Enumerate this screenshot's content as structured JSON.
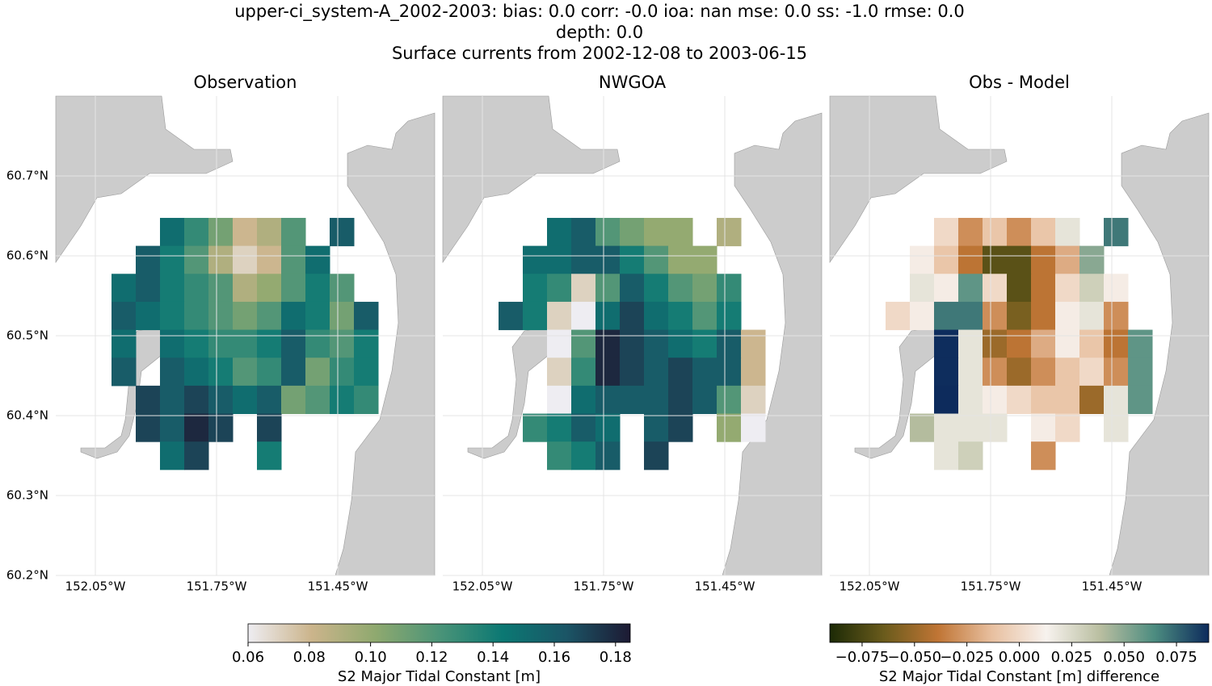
{
  "chart_data": {
    "type": "map",
    "title": [
      "upper-ci_system-A_2002-2003: bias: 0.0  corr: -0.0  ioa: nan  mse: 0.0  ss: -1.0  rmse: 0.0",
      "depth: 0.0",
      "Surface currents from 2002-12-08 to 2003-06-15"
    ],
    "land_color": "#cccccc",
    "xlim": [
      -152.148,
      -151.21
    ],
    "ylim": [
      60.2,
      60.8
    ],
    "xticks": [
      {
        "value": -152.05,
        "label": "152.05°W"
      },
      {
        "value": -151.75,
        "label": "151.75°W"
      },
      {
        "value": -151.45,
        "label": "151.45°W"
      }
    ],
    "yticks": [
      {
        "value": 60.7,
        "label": "60.7°N"
      },
      {
        "value": 60.6,
        "label": "60.6°N"
      },
      {
        "value": 60.5,
        "label": "60.5°N"
      },
      {
        "value": 60.4,
        "label": "60.4°N"
      },
      {
        "value": 60.3,
        "label": "60.3°N"
      },
      {
        "value": 60.2,
        "label": "60.2°N"
      }
    ],
    "lons": [
      -151.98,
      -151.92,
      -151.86,
      -151.8,
      -151.74,
      -151.68,
      -151.62,
      -151.56,
      -151.5,
      -151.44,
      -151.38,
      -151.32
    ],
    "lats": [
      60.63,
      60.595,
      60.56,
      60.525,
      60.49,
      60.455,
      60.42,
      60.385,
      60.35
    ],
    "panels": [
      {
        "title": "Observation",
        "colorbar": 0,
        "values": [
          [
            null,
            null,
            0.15,
            0.13,
            0.11,
            0.08,
            0.09,
            0.12,
            null,
            0.16,
            null,
            null
          ],
          [
            null,
            0.16,
            0.14,
            0.12,
            0.09,
            0.07,
            0.08,
            0.12,
            0.15,
            null,
            null,
            null
          ],
          [
            0.15,
            0.16,
            0.14,
            0.13,
            0.12,
            0.09,
            0.1,
            0.12,
            0.14,
            0.12,
            null,
            null
          ],
          [
            0.16,
            0.15,
            0.14,
            0.13,
            0.12,
            0.11,
            0.12,
            0.15,
            0.14,
            0.11,
            0.16,
            null
          ],
          [
            0.15,
            null,
            0.15,
            0.14,
            0.13,
            0.13,
            0.14,
            0.16,
            0.13,
            0.12,
            0.14,
            null
          ],
          [
            0.16,
            null,
            0.16,
            0.15,
            0.14,
            0.12,
            0.13,
            0.16,
            0.11,
            0.13,
            0.14,
            null
          ],
          [
            null,
            0.17,
            0.16,
            0.17,
            0.16,
            0.15,
            0.16,
            0.11,
            0.12,
            0.14,
            0.13,
            null
          ],
          [
            null,
            0.17,
            0.16,
            0.18,
            0.17,
            null,
            0.17,
            null,
            null,
            null,
            null,
            null
          ],
          [
            null,
            null,
            0.15,
            0.17,
            null,
            null,
            0.14,
            null,
            null,
            null,
            null,
            null
          ]
        ]
      },
      {
        "title": "NWGOA",
        "colorbar": 0,
        "values": [
          [
            null,
            null,
            0.15,
            0.16,
            0.12,
            0.11,
            0.1,
            0.1,
            null,
            0.09,
            null,
            null
          ],
          [
            null,
            0.15,
            0.15,
            0.16,
            0.16,
            0.14,
            0.12,
            0.1,
            0.1,
            null,
            null,
            null
          ],
          [
            null,
            0.14,
            0.13,
            0.07,
            0.12,
            0.16,
            0.14,
            0.12,
            0.11,
            0.13,
            null,
            null
          ],
          [
            0.16,
            0.14,
            0.07,
            0.06,
            0.15,
            0.17,
            0.15,
            0.14,
            0.12,
            0.14,
            null,
            null
          ],
          [
            null,
            null,
            0.06,
            0.12,
            0.18,
            0.17,
            0.16,
            0.15,
            0.14,
            0.16,
            0.08,
            null
          ],
          [
            null,
            null,
            0.07,
            0.13,
            0.18,
            0.17,
            0.16,
            0.17,
            0.16,
            0.16,
            0.08,
            null
          ],
          [
            null,
            null,
            0.06,
            0.15,
            0.16,
            0.16,
            0.16,
            0.17,
            0.16,
            0.12,
            0.07,
            null
          ],
          [
            null,
            0.13,
            0.14,
            0.16,
            0.15,
            null,
            0.16,
            0.17,
            null,
            0.1,
            0.06,
            null
          ],
          [
            null,
            null,
            0.13,
            0.14,
            0.16,
            null,
            0.17,
            null,
            null,
            null,
            null,
            null
          ]
        ]
      },
      {
        "title": "Obs - Model",
        "colorbar": 1,
        "values": [
          [
            null,
            null,
            0.0,
            -0.03,
            -0.01,
            -0.03,
            -0.01,
            0.02,
            null,
            0.07,
            null,
            null
          ],
          [
            null,
            0.01,
            -0.01,
            -0.04,
            -0.07,
            -0.07,
            -0.04,
            -0.02,
            0.05,
            null,
            null,
            null
          ],
          [
            null,
            0.02,
            0.01,
            0.06,
            0.0,
            -0.07,
            -0.04,
            0.0,
            0.03,
            0.01,
            null,
            null
          ],
          [
            0.0,
            0.01,
            0.07,
            0.07,
            -0.03,
            -0.06,
            -0.04,
            0.01,
            0.02,
            -0.03,
            null,
            null
          ],
          [
            null,
            null,
            0.09,
            0.02,
            -0.05,
            -0.04,
            -0.02,
            0.01,
            -0.01,
            -0.04,
            0.06,
            null
          ],
          [
            null,
            null,
            0.09,
            0.02,
            -0.03,
            -0.05,
            -0.03,
            -0.01,
            0.0,
            -0.03,
            0.06,
            null
          ],
          [
            null,
            null,
            0.1,
            0.02,
            0.01,
            0.0,
            -0.01,
            -0.01,
            -0.05,
            0.02,
            0.06,
            null
          ],
          [
            null,
            0.04,
            0.02,
            0.02,
            0.02,
            null,
            0.01,
            0.0,
            null,
            0.02,
            null,
            null
          ],
          [
            null,
            null,
            0.02,
            0.03,
            null,
            null,
            -0.03,
            null,
            null,
            null,
            null,
            null
          ]
        ]
      }
    ],
    "colorbars": [
      {
        "label": "S2 Major Tidal Constant [m]",
        "lim": [
          0.06,
          0.1848
        ],
        "ticks": [
          0.06,
          0.08,
          {
            "value": 0.1,
            "label": "0.10"
          },
          0.12,
          0.14,
          0.16,
          0.18
        ],
        "colors": [
          "#eeedf2",
          "#cbb48b",
          "#8fa96f",
          "#4b9478",
          "#0b7873",
          "#1b5566",
          "#1d1a33"
        ]
      },
      {
        "label": "S2 Major Tidal Constant [m] difference",
        "lim": [
          -0.0904,
          0.0904
        ],
        "ticks": [
          {
            "value": -0.075,
            "label": "−0.075"
          },
          {
            "value": -0.05,
            "label": "−0.050"
          },
          {
            "value": -0.025,
            "label": "−0.025"
          },
          {
            "value": 0,
            "label": "0.000"
          },
          0.025,
          {
            "value": 0.05,
            "label": "0.050"
          },
          0.075
        ],
        "colors": [
          "#1c2a06",
          "#6a5b1c",
          "#c07535",
          "#e8c0a0",
          "#f7f2ee",
          "#b9bea0",
          "#4c8c80",
          "#0d2b5c"
        ]
      }
    ]
  }
}
